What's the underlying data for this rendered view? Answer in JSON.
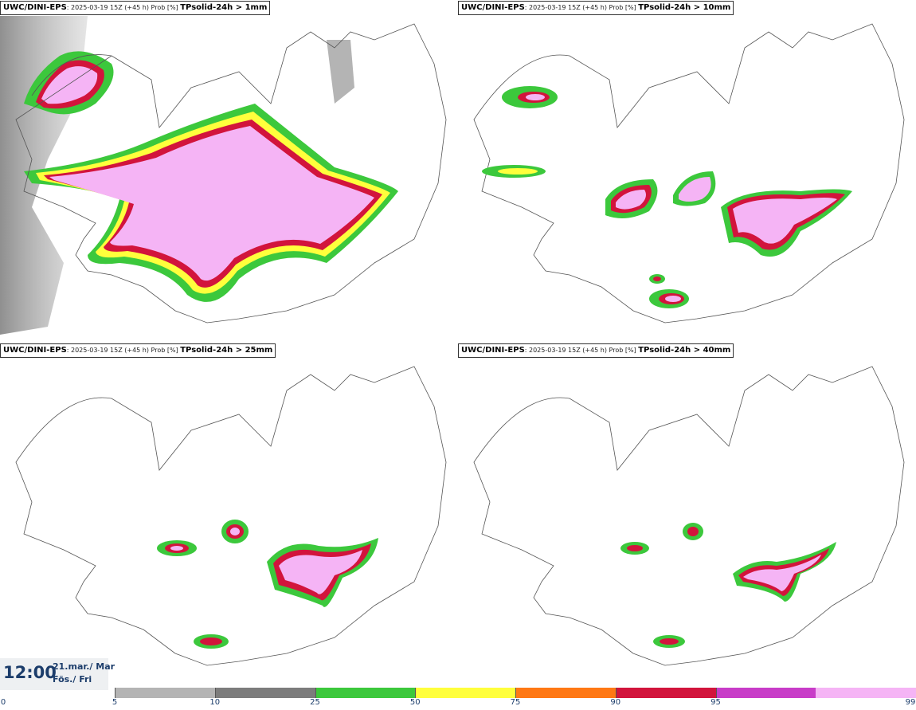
{
  "panels": [
    {
      "source": "UWC/DINI-EPS",
      "meta": ": 2025-03-19 15Z (+45 h) Prob [%] ",
      "field": "TPsolid-24h > 1mm"
    },
    {
      "source": "UWC/DINI-EPS",
      "meta": ": 2025-03-19 15Z (+45 h) Prob [%] ",
      "field": "TPsolid-24h > 10mm"
    },
    {
      "source": "UWC/DINI-EPS",
      "meta": ": 2025-03-19 15Z (+45 h) Prob [%] ",
      "field": "TPsolid-24h > 25mm"
    },
    {
      "source": "UWC/DINI-EPS",
      "meta": ": 2025-03-19 15Z (+45 h) Prob [%] ",
      "field": "TPsolid-24h > 40mm"
    }
  ],
  "valid_time": {
    "time": "12:00",
    "date_line1": "21.mar./ Mar",
    "date_line2": "Fös./ Fri"
  },
  "colorbar": {
    "ticks": [
      "0",
      "5",
      "10",
      "25",
      "50",
      "75",
      "90",
      "95",
      "99"
    ],
    "colors": [
      "#b4b4b4",
      "#7c7c7c",
      "#3cc83c",
      "#ffff3c",
      "#ff7814",
      "#d2143c",
      "#c83cc8",
      "#f5b4f5"
    ]
  }
}
